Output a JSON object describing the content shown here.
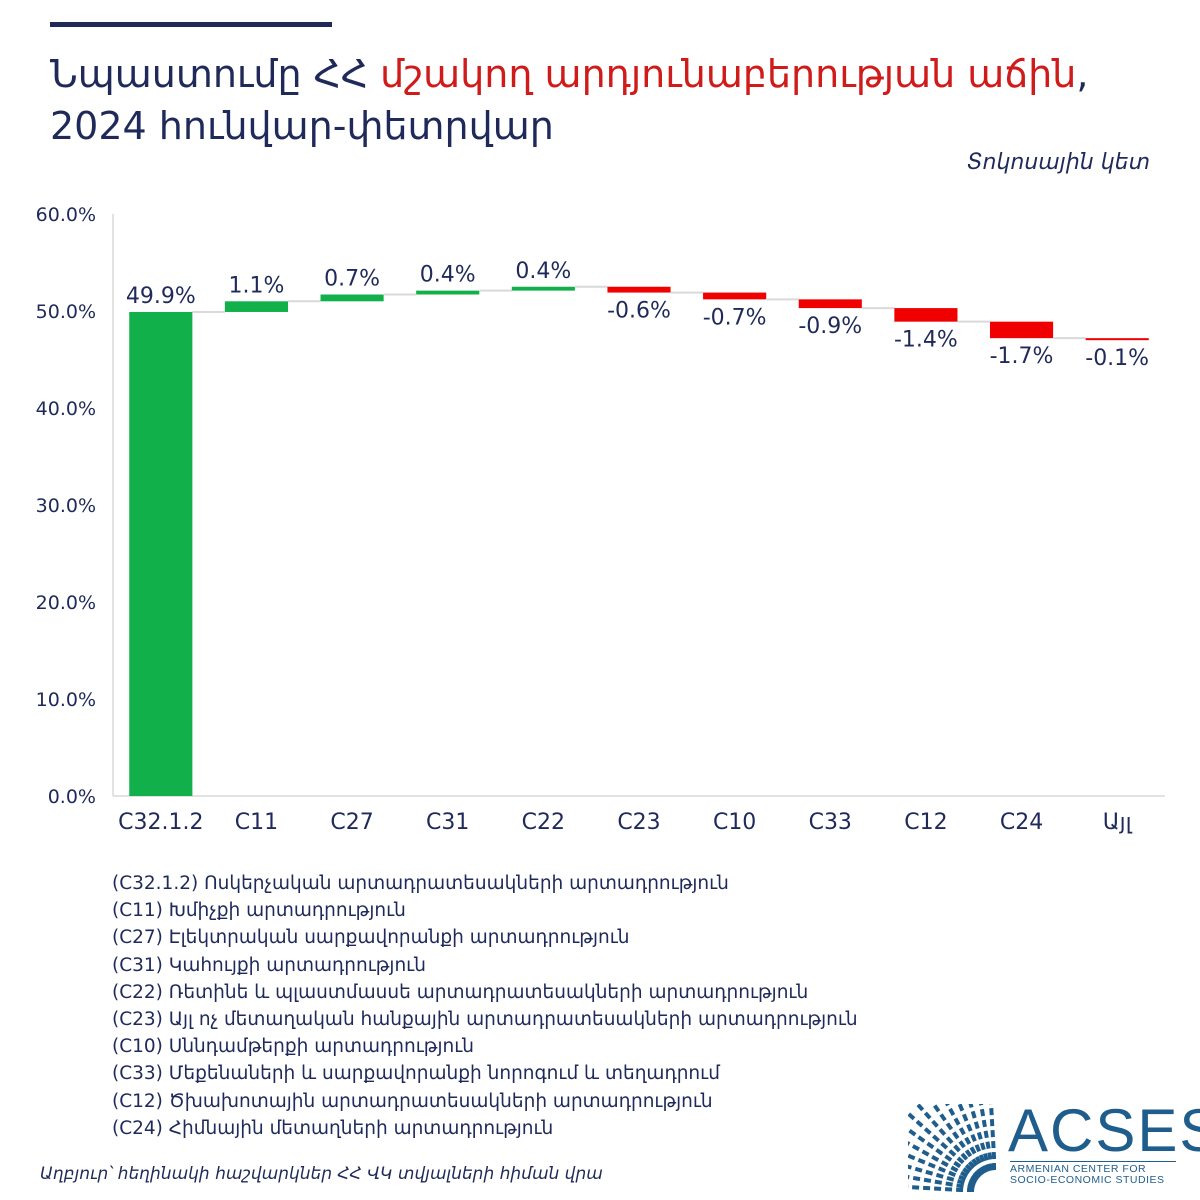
{
  "title": {
    "part1": "Նպաստումը ՀՀ ",
    "part2": "մշակող արդյունաբերության աճին",
    "part3": ",",
    "line2": "2024 հունվար-փետրվար"
  },
  "unit_note": "Տոկոսային կետ",
  "colors": {
    "positive": "#12b04a",
    "negative": "#f00000",
    "text": "#1f2a5a",
    "connector": "#d9d9d9",
    "axis": "#d9d9d9"
  },
  "chart_data": {
    "type": "bar",
    "subtype": "waterfall",
    "categories": [
      "C32.1.2",
      "C11",
      "C27",
      "C31",
      "C22",
      "C23",
      "C10",
      "C33",
      "C12",
      "C24",
      "Այլ"
    ],
    "values": [
      49.9,
      1.1,
      0.7,
      0.4,
      0.4,
      -0.6,
      -0.7,
      -0.9,
      -1.4,
      -1.7,
      -0.1
    ],
    "data_labels": [
      "49.9%",
      "1.1%",
      "0.7%",
      "0.4%",
      "0.4%",
      "-0.6%",
      "-0.7%",
      "-0.9%",
      "-1.4%",
      "-1.7%",
      "-0.1%"
    ],
    "yticks": [
      "0.0%",
      "10.0%",
      "20.0%",
      "30.0%",
      "40.0%",
      "50.0%",
      "60.0%"
    ],
    "ylim": [
      0,
      60
    ],
    "grid": false
  },
  "legend_lines": [
    "(C32.1.2) Ոսկերչական արտադրատեսակների արտադրություն",
    "(C11) Խմիչքի արտադրություն",
    "(C27) Էլեկտրական սարքավորանքի արտադրություն",
    "(C31) Կահույքի արտադրություն",
    "(C22) Ռետինե և պլաստմասսե արտադրատեսակների արտադրություն",
    "(C23) Այլ ոչ մետաղական հանքային արտադրատեսակների արտադրություն",
    "(C10) Սննդամթերքի արտադրություն",
    "(C33) Մեքենաների և սարքավորանքի նորոգում և տեղադրում",
    "(C12) Ծխախոտային արտադրատեսակների արտադրություն",
    "(C24) Հիմնային մետաղների արտադրություն"
  ],
  "source": "Աղբյուր՝ հեղինակի հաշվարկներ ՀՀ ՎԿ տվյալների հիման վրա",
  "logo": {
    "name": "ACSES",
    "sub_line1": "ARMENIAN CENTER FOR",
    "sub_line2": "SOCIO-ECONOMIC STUDIES",
    "icon": "colonnade-arc-icon"
  }
}
